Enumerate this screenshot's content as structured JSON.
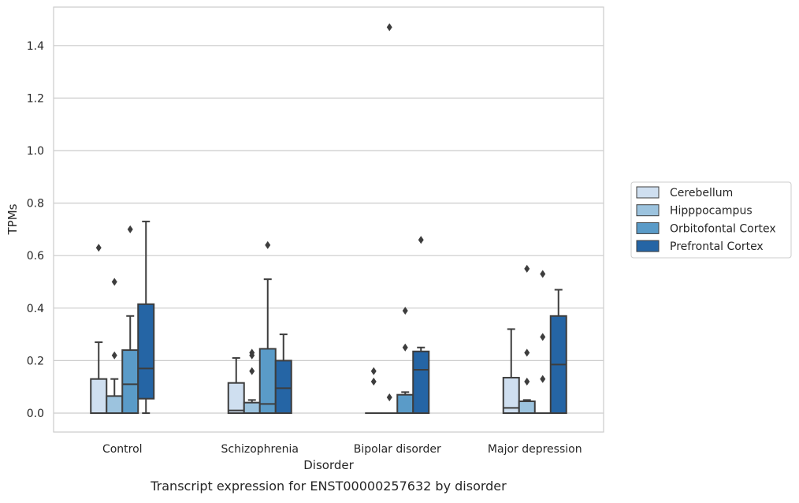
{
  "chart_data": {
    "type": "box",
    "caption": "Transcript expression for ENST00000257632 by disorder",
    "xlabel": "Disorder",
    "ylabel": "TPMs",
    "ylim": [
      -0.07,
      1.55
    ],
    "yticks": [
      "0.0",
      "0.2",
      "0.4",
      "0.6",
      "0.8",
      "1.0",
      "1.2",
      "1.4"
    ],
    "ytick_values": [
      0.0,
      0.2,
      0.4,
      0.6,
      0.8,
      1.0,
      1.2,
      1.4
    ],
    "grid": "horizontal",
    "legend_position": "right",
    "categories": [
      "Control",
      "Schizophrenia",
      "Bipolar disorder",
      "Major depression"
    ],
    "series": [
      {
        "name": "Cerebellum",
        "color": "#cfdff0",
        "boxes": [
          {
            "q1": 0.0,
            "median": 0.0,
            "q3": 0.13,
            "whisker_low": 0.0,
            "whisker_high": 0.27,
            "outliers": [
              0.63
            ]
          },
          {
            "q1": 0.0,
            "median": 0.01,
            "q3": 0.115,
            "whisker_low": 0.0,
            "whisker_high": 0.21,
            "outliers": []
          },
          {
            "q1": 0.0,
            "median": 0.0,
            "q3": 0.0,
            "whisker_low": 0.0,
            "whisker_high": 0.0,
            "outliers": [
              0.12,
              0.16
            ]
          },
          {
            "q1": 0.0,
            "median": 0.02,
            "q3": 0.135,
            "whisker_low": 0.0,
            "whisker_high": 0.32,
            "outliers": []
          }
        ]
      },
      {
        "name": "Hipppocampus",
        "color": "#9cc3de",
        "boxes": [
          {
            "q1": 0.0,
            "median": 0.0,
            "q3": 0.065,
            "whisker_low": 0.0,
            "whisker_high": 0.13,
            "outliers": [
              0.22,
              0.5
            ]
          },
          {
            "q1": 0.0,
            "median": 0.0,
            "q3": 0.04,
            "whisker_low": 0.0,
            "whisker_high": 0.05,
            "outliers": [
              0.16,
              0.22,
              0.23
            ]
          },
          {
            "q1": 0.0,
            "median": 0.0,
            "q3": 0.0,
            "whisker_low": 0.0,
            "whisker_high": 0.0,
            "outliers": [
              0.06,
              1.47
            ]
          },
          {
            "q1": 0.0,
            "median": 0.0,
            "q3": 0.045,
            "whisker_low": 0.0,
            "whisker_high": 0.05,
            "outliers": [
              0.12,
              0.23,
              0.55
            ]
          }
        ]
      },
      {
        "name": "Orbitofontal Cortex",
        "color": "#5a9bc8",
        "boxes": [
          {
            "q1": 0.0,
            "median": 0.11,
            "q3": 0.24,
            "whisker_low": 0.0,
            "whisker_high": 0.37,
            "outliers": [
              0.7
            ]
          },
          {
            "q1": 0.0,
            "median": 0.035,
            "q3": 0.245,
            "whisker_low": 0.0,
            "whisker_high": 0.51,
            "outliers": [
              0.64
            ]
          },
          {
            "q1": 0.0,
            "median": 0.0,
            "q3": 0.07,
            "whisker_low": 0.0,
            "whisker_high": 0.08,
            "outliers": [
              0.25,
              0.39
            ]
          },
          {
            "q1": 0.0,
            "median": 0.0,
            "q3": 0.0,
            "whisker_low": 0.0,
            "whisker_high": 0.0,
            "outliers": [
              0.13,
              0.29,
              0.53
            ]
          }
        ]
      },
      {
        "name": "Prefrontal Cortex",
        "color": "#2565a5",
        "boxes": [
          {
            "q1": 0.055,
            "median": 0.17,
            "q3": 0.415,
            "whisker_low": 0.0,
            "whisker_high": 0.73,
            "outliers": []
          },
          {
            "q1": 0.0,
            "median": 0.095,
            "q3": 0.2,
            "whisker_low": 0.0,
            "whisker_high": 0.3,
            "outliers": []
          },
          {
            "q1": 0.0,
            "median": 0.165,
            "q3": 0.235,
            "whisker_low": 0.0,
            "whisker_high": 0.25,
            "outliers": [
              0.66
            ]
          },
          {
            "q1": 0.0,
            "median": 0.185,
            "q3": 0.37,
            "whisker_low": 0.0,
            "whisker_high": 0.47,
            "outliers": []
          }
        ]
      }
    ]
  }
}
